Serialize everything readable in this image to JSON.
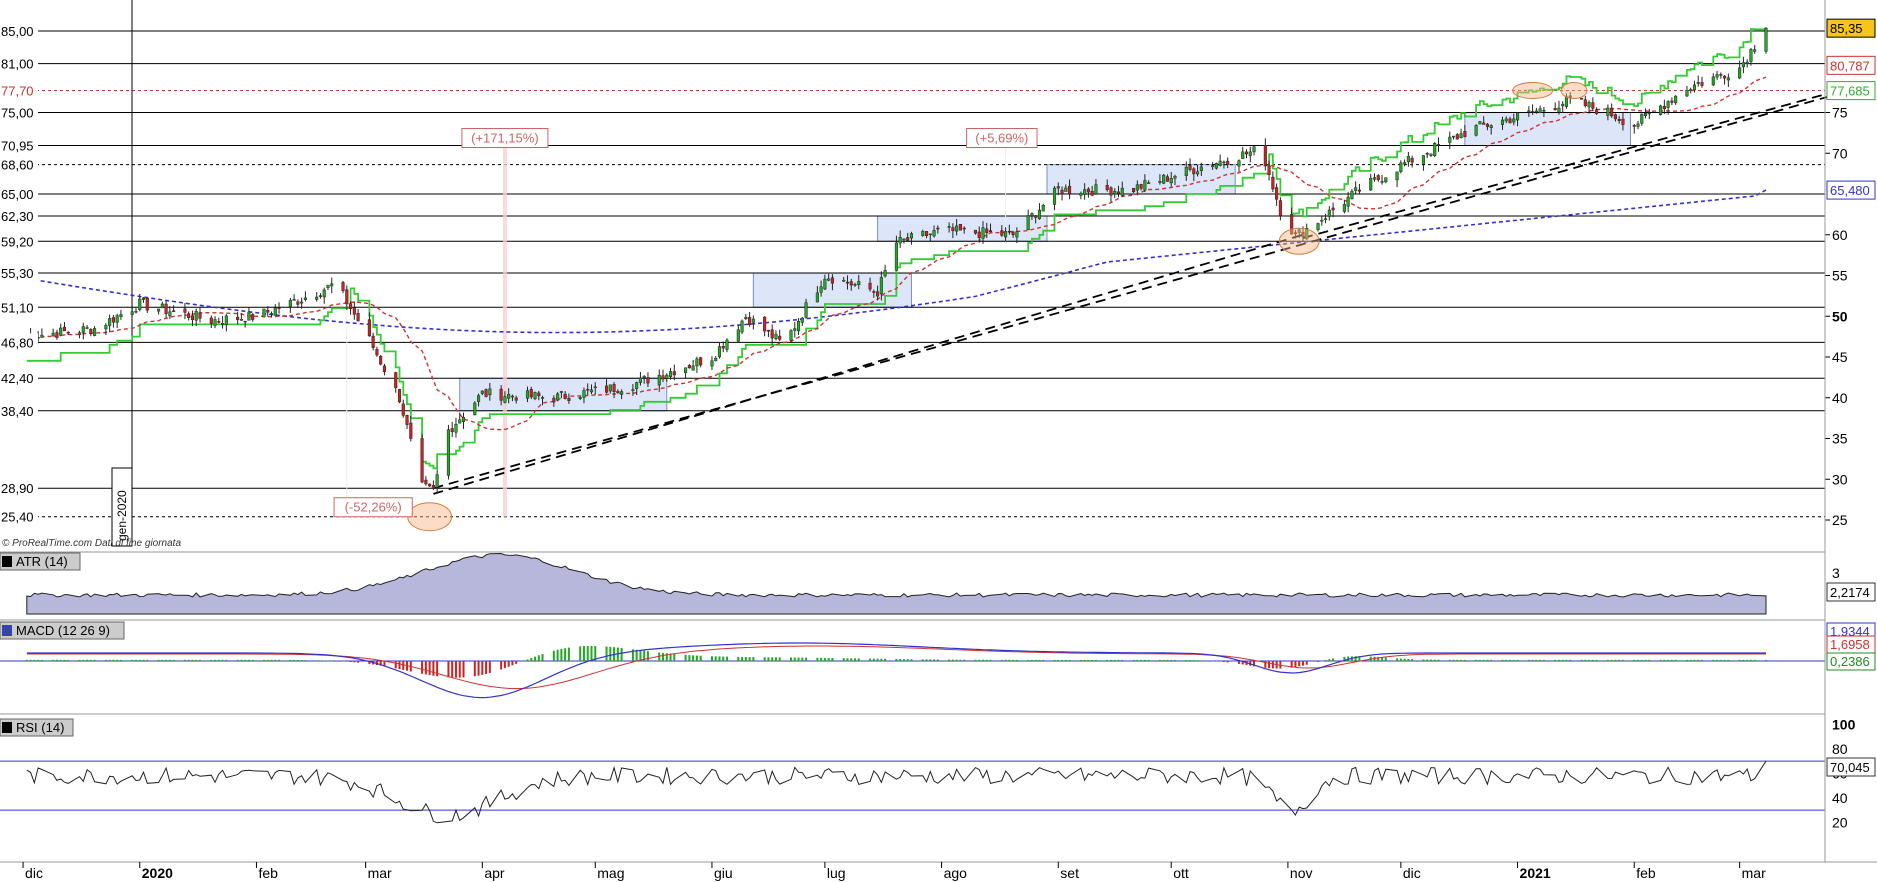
{
  "credit": "© ProRealTime.com  Dati di fine giornata",
  "vertical_marker_label": "gen-2020",
  "price_panel": {
    "left_levels": [
      {
        "value": 85.0,
        "label": "85,00",
        "color": "#000000",
        "dashed": false
      },
      {
        "value": 81.0,
        "label": "81,00",
        "color": "#000000",
        "dashed": false
      },
      {
        "value": 77.7,
        "label": "77,70",
        "color": "#cc3333",
        "dashed": true
      },
      {
        "value": 75.0,
        "label": "75,00",
        "color": "#000000",
        "dashed": false
      },
      {
        "value": 70.95,
        "label": "70,95",
        "color": "#000000",
        "dashed": false
      },
      {
        "value": 68.6,
        "label": "68,60",
        "color": "#000000",
        "dashed": true
      },
      {
        "value": 65.0,
        "label": "65,00",
        "color": "#000000",
        "dashed": false
      },
      {
        "value": 62.3,
        "label": "62,30",
        "color": "#000000",
        "dashed": false
      },
      {
        "value": 59.2,
        "label": "59,20",
        "color": "#000000",
        "dashed": false
      },
      {
        "value": 55.3,
        "label": "55,30",
        "color": "#000000",
        "dashed": false
      },
      {
        "value": 51.1,
        "label": "51,10",
        "color": "#000000",
        "dashed": false
      },
      {
        "value": 46.8,
        "label": "46,80",
        "color": "#000000",
        "dashed": false
      },
      {
        "value": 42.4,
        "label": "42,40",
        "color": "#000000",
        "dashed": false
      },
      {
        "value": 38.4,
        "label": "38,40",
        "color": "#000000",
        "dashed": false
      },
      {
        "value": 28.9,
        "label": "28,90",
        "color": "#000000",
        "dashed": false
      },
      {
        "value": 25.4,
        "label": "25,40",
        "color": "#000000",
        "dashed": true
      }
    ],
    "right_ticks": [
      {
        "value": 75,
        "label": "75"
      },
      {
        "value": 70,
        "label": "70"
      },
      {
        "value": 60,
        "label": "60"
      },
      {
        "value": 55,
        "label": "55"
      },
      {
        "value": 50,
        "label": "50",
        "bold": true
      },
      {
        "value": 45,
        "label": "45"
      },
      {
        "value": 40,
        "label": "40"
      },
      {
        "value": 35,
        "label": "35"
      },
      {
        "value": 30,
        "label": "30"
      },
      {
        "value": 25,
        "label": "25"
      }
    ],
    "right_badges": [
      {
        "value": 85.35,
        "label": "85,35",
        "bg": "#f5c518",
        "fg": "#000000",
        "border": "#000000"
      },
      {
        "value": 80.787,
        "label": "80,787",
        "bg": "#ffffff",
        "fg": "#cc3333",
        "border": "#cc3333"
      },
      {
        "value": 77.685,
        "label": "77,685",
        "bg": "#ffffff",
        "fg": "#33aa33",
        "border": "#33aa33"
      },
      {
        "value": 65.48,
        "label": "65,480",
        "bg": "#ffffff",
        "fg": "#3333cc",
        "border": "#3333cc"
      }
    ],
    "annotations": [
      {
        "label": "(-52,26%)",
        "color": "#cc6666"
      },
      {
        "label": "(+171,15%)",
        "color": "#cc6666"
      },
      {
        "label": "(+5,69%)",
        "color": "#cc6666"
      }
    ]
  },
  "months": [
    {
      "label": "dic",
      "bold": false
    },
    {
      "label": "2020",
      "bold": true
    },
    {
      "label": "feb",
      "bold": false
    },
    {
      "label": "mar",
      "bold": false
    },
    {
      "label": "apr",
      "bold": false
    },
    {
      "label": "mag",
      "bold": false
    },
    {
      "label": "giu",
      "bold": false
    },
    {
      "label": "lug",
      "bold": false
    },
    {
      "label": "ago",
      "bold": false
    },
    {
      "label": "set",
      "bold": false
    },
    {
      "label": "ott",
      "bold": false
    },
    {
      "label": "nov",
      "bold": false
    },
    {
      "label": "dic",
      "bold": false
    },
    {
      "label": "2021",
      "bold": true
    },
    {
      "label": "feb",
      "bold": false
    },
    {
      "label": "mar",
      "bold": false
    }
  ],
  "atr_panel": {
    "title": "ATR (14)",
    "tick": "3",
    "value_label": "2,2174"
  },
  "macd_panel": {
    "title": "MACD (12 26 9)",
    "value_labels": [
      "1,9344",
      "1,6958",
      "0,2386"
    ],
    "value_colors": [
      "#3333cc",
      "#cc3333",
      "#228822"
    ]
  },
  "rsi_panel": {
    "title": "RSI (14)",
    "ticks": [
      {
        "value": 100,
        "label": "100",
        "bold": true
      },
      {
        "value": 80,
        "label": "80"
      },
      {
        "value": 60,
        "label": "60"
      },
      {
        "value": 40,
        "label": "40"
      },
      {
        "value": 20,
        "label": "20"
      }
    ],
    "value_label": "70,045",
    "levels": [
      70,
      30
    ]
  },
  "colors": {
    "up_candle": "#22aa22",
    "down_candle": "#cc2222",
    "sma_short": "#cc3333",
    "sma_long": "#3333cc",
    "stop_line": "#33cc33",
    "resistance_box": "#dce6f8",
    "highlight_ellipse": "#f4b183",
    "atr_fill": "#9999cc"
  },
  "chart_data": {
    "type": "candlestick",
    "x_range": [
      "2019-12",
      "2021-03"
    ],
    "ylim": [
      22,
      87
    ],
    "last_price": 85.35,
    "close_path": [
      [
        "2019-12-01",
        47.5
      ],
      [
        "2019-12-20",
        48.5
      ],
      [
        "2020-01-01",
        51.5
      ],
      [
        "2020-01-20",
        49.5
      ],
      [
        "2020-02-01",
        50.0
      ],
      [
        "2020-02-15",
        52.5
      ],
      [
        "2020-02-22",
        54.0
      ],
      [
        "2020-03-01",
        48.0
      ],
      [
        "2020-03-10",
        40.0
      ],
      [
        "2020-03-16",
        29.0
      ],
      [
        "2020-03-19",
        28.5
      ],
      [
        "2020-03-23",
        36.0
      ],
      [
        "2020-04-01",
        40.5
      ],
      [
        "2020-04-20",
        40.0
      ],
      [
        "2020-05-10",
        41.5
      ],
      [
        "2020-06-01",
        45.0
      ],
      [
        "2020-06-10",
        50.0
      ],
      [
        "2020-06-20",
        46.5
      ],
      [
        "2020-07-01",
        55.0
      ],
      [
        "2020-07-15",
        53.0
      ],
      [
        "2020-07-20",
        59.0
      ],
      [
        "2020-08-01",
        60.5
      ],
      [
        "2020-08-20",
        60.0
      ],
      [
        "2020-09-01",
        65.5
      ],
      [
        "2020-09-20",
        65.5
      ],
      [
        "2020-10-10",
        68.5
      ],
      [
        "2020-10-25",
        70.5
      ],
      [
        "2020-10-30",
        63.0
      ],
      [
        "2020-11-03",
        59.8
      ],
      [
        "2020-11-10",
        62.0
      ],
      [
        "2020-11-20",
        65.5
      ],
      [
        "2020-12-01",
        68.5
      ],
      [
        "2020-12-20",
        73.0
      ],
      [
        "2021-01-05",
        75.0
      ],
      [
        "2021-01-15",
        76.5
      ],
      [
        "2021-01-25",
        75.0
      ],
      [
        "2021-02-01",
        73.5
      ],
      [
        "2021-02-15",
        78.0
      ],
      [
        "2021-03-01",
        80.5
      ],
      [
        "2021-03-08",
        85.35
      ]
    ],
    "indicators": [
      {
        "name": "SMA short",
        "last": 80.787
      },
      {
        "name": "Stop",
        "last": 77.685
      },
      {
        "name": "SMA long",
        "last": 65.48
      }
    ],
    "atr_last": 2.2174,
    "macd_last": {
      "macd": 1.9344,
      "signal": 1.6958,
      "histogram": 0.2386
    },
    "rsi_last": 70.045
  }
}
